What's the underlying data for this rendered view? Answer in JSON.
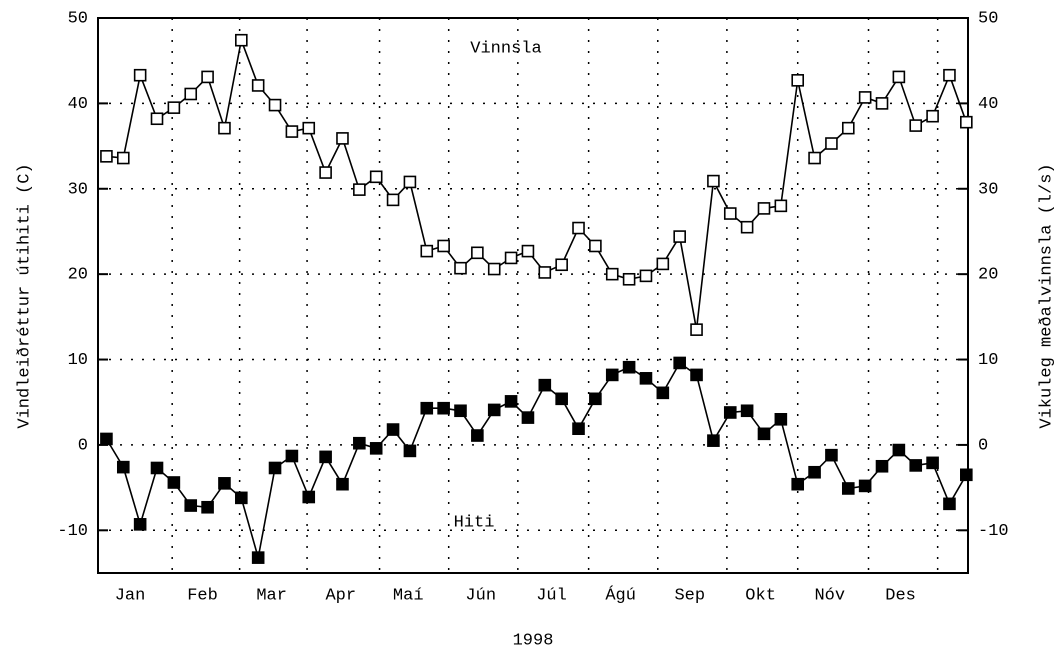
{
  "chart_data": {
    "type": "line",
    "xlabel": "1998",
    "ylabel": "Vindleiðréttur útihiti (C)",
    "y2label": "Vikuleg meðalvinnsla (l/s)",
    "annotations": [
      "Vinnsla",
      "Hiti"
    ],
    "x": [
      1,
      2,
      3,
      4,
      5,
      6,
      7,
      8,
      9,
      10,
      11,
      12,
      13,
      14,
      15,
      16,
      17,
      18,
      19,
      20,
      21,
      22,
      23,
      24,
      25,
      26,
      27,
      28,
      29,
      30,
      31,
      32,
      33,
      34,
      35,
      36,
      37,
      38,
      39,
      40,
      41,
      42,
      43,
      44,
      45,
      46,
      47,
      48,
      49,
      50,
      51,
      52
    ],
    "series": [
      {
        "name": "Vinnsla",
        "color": "#000000",
        "marker": "open-square",
        "axis": "y2",
        "values": [
          33.8,
          33.6,
          43.3,
          38.2,
          39.5,
          41.1,
          43.1,
          37.1,
          47.4,
          42.1,
          39.8,
          36.7,
          37.1,
          31.9,
          35.9,
          29.9,
          31.4,
          28.7,
          30.8,
          22.7,
          23.3,
          20.7,
          22.5,
          20.6,
          21.9,
          22.7,
          20.2,
          21.1,
          25.4,
          23.3,
          20.0,
          19.4,
          19.8,
          21.2,
          24.4,
          13.5,
          30.9,
          27.1,
          25.5,
          27.7,
          28.0,
          42.7,
          33.6,
          35.3,
          37.1,
          40.7,
          40.0,
          43.1,
          37.4,
          38.5,
          43.3,
          37.8
        ]
      },
      {
        "name": "Hiti",
        "color": "#000000",
        "marker": "filled-square",
        "values": [
          0.7,
          -2.6,
          -9.3,
          -2.7,
          -4.4,
          -7.1,
          -7.3,
          -4.5,
          -6.2,
          -13.2,
          -2.7,
          -1.3,
          -6.1,
          -1.4,
          -4.6,
          0.2,
          -0.4,
          1.8,
          -0.7,
          4.3,
          4.3,
          4.0,
          1.1,
          4.1,
          5.1,
          3.2,
          7.0,
          5.4,
          1.9,
          5.4,
          8.2,
          9.1,
          7.8,
          6.1,
          9.6,
          8.2,
          0.5,
          3.8,
          4.0,
          1.3,
          3.0,
          -4.6,
          -3.2,
          -1.2,
          -5.1,
          -4.8,
          -2.5,
          -0.6,
          -2.4,
          -2.1,
          -6.9,
          -3.5
        ]
      }
    ],
    "xlim": [
      0.5,
      52.1
    ],
    "xticks": [
      {
        "value": 2.4,
        "label": "Jan"
      },
      {
        "value": 6.7,
        "label": "Feb"
      },
      {
        "value": 10.8,
        "label": "Mar"
      },
      {
        "value": 14.9,
        "label": "Apr"
      },
      {
        "value": 18.9,
        "label": "Maí"
      },
      {
        "value": 23.2,
        "label": "Jún"
      },
      {
        "value": 27.4,
        "label": "Júl"
      },
      {
        "value": 31.5,
        "label": "Ágú"
      },
      {
        "value": 35.6,
        "label": "Sep"
      },
      {
        "value": 39.8,
        "label": "Okt"
      },
      {
        "value": 43.9,
        "label": "Nóv"
      },
      {
        "value": 48.1,
        "label": "Des"
      }
    ],
    "xgrid": [
      4.9,
      8.9,
      12.9,
      17.2,
      21.3,
      25.4,
      29.6,
      33.7,
      37.8,
      42.0,
      46.2,
      50.3
    ],
    "ylim": [
      -15,
      50
    ],
    "yticks": [
      -10,
      0,
      10,
      20,
      30,
      40,
      50
    ],
    "y2lim": [
      -15,
      50
    ],
    "y2ticks": [
      -10,
      0,
      10,
      20,
      30,
      40,
      50
    ],
    "grid": true
  }
}
